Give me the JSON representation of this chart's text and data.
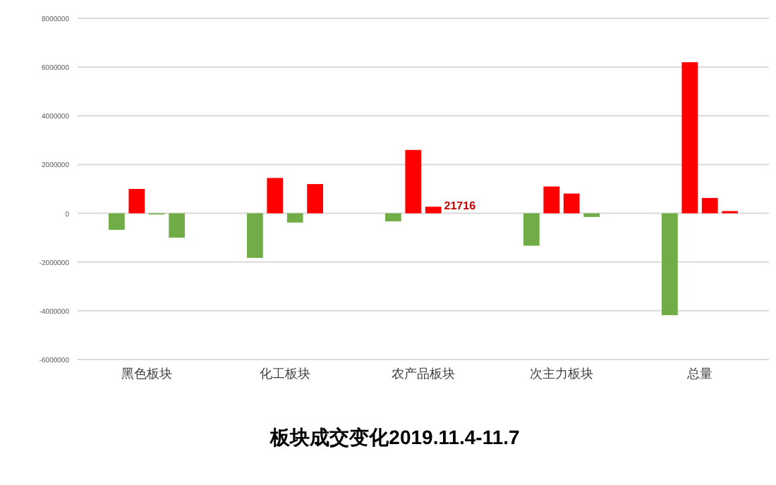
{
  "chart_data": {
    "type": "bar",
    "title": "板块成交变化2019.11.4-11.7",
    "categories": [
      "黑色板块",
      "化工板块",
      "农产品板块",
      "次主力板块",
      "总量"
    ],
    "series": [
      {
        "colors": [
          "#70ad47",
          "#70ad47",
          "#70ad47",
          "#70ad47",
          "#70ad47"
        ],
        "values": [
          -680000,
          -1830000,
          -330000,
          -1330000,
          -4180000
        ]
      },
      {
        "colors": [
          "#ff0000",
          "#ff0000",
          "#ff0000",
          "#ff0000",
          "#ff0000"
        ],
        "values": [
          1000000,
          1450000,
          2600000,
          1100000,
          6200000
        ]
      },
      {
        "colors": [
          "#70ad47",
          "#70ad47",
          "#ff0000",
          "#ff0000",
          "#ff0000"
        ],
        "values": [
          -50000,
          -380000,
          270000,
          810000,
          630000
        ]
      },
      {
        "colors": [
          "#70ad47",
          "#ff0000",
          null,
          "#70ad47",
          "#ff0000"
        ],
        "values": [
          -1000000,
          1200000,
          null,
          -150000,
          90000
        ]
      }
    ],
    "ylim": [
      -6000000,
      8000000
    ],
    "yticks": [
      -6000000,
      -4000000,
      -2000000,
      0,
      2000000,
      4000000,
      6000000,
      8000000
    ],
    "grid": "y",
    "annotations": [
      {
        "text": "21716",
        "x": "农产品板块",
        "y": 270000
      }
    ]
  }
}
